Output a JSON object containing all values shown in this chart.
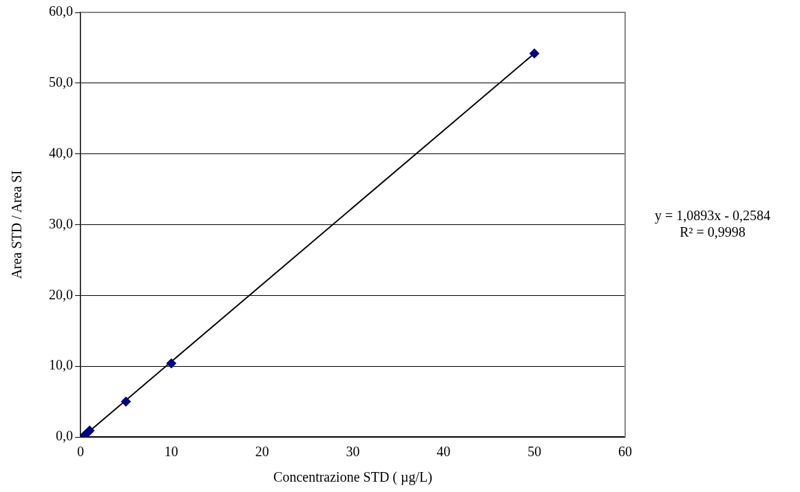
{
  "chart_data": {
    "type": "scatter",
    "xlabel": "Concentrazione STD ( µg/L)",
    "ylabel": "Area STD / Area SI",
    "xlim": [
      0,
      60
    ],
    "xticks": [
      0,
      10,
      20,
      30,
      40,
      50,
      60
    ],
    "ylim": [
      0,
      60
    ],
    "yticks": [
      {
        "value": 0,
        "label": "0,0"
      },
      {
        "value": 10,
        "label": "10,0"
      },
      {
        "value": 20,
        "label": "20,0"
      },
      {
        "value": 30,
        "label": "30,0"
      },
      {
        "value": 40,
        "label": "40,0"
      },
      {
        "value": 50,
        "label": "50,0"
      },
      {
        "value": 60,
        "label": "60,0"
      }
    ],
    "grid": "y",
    "legend": false,
    "series": [
      {
        "color": "#000080",
        "marker": "diamond",
        "x": [
          0.5,
          1,
          5,
          10,
          50
        ],
        "values": [
          0.3,
          0.9,
          5.0,
          10.4,
          54.2
        ]
      },
      {
        "type": "line",
        "color": "#000000",
        "marker": "none",
        "line_style": "solid",
        "x": [
          0.5,
          50
        ],
        "values": [
          0.3,
          54.2
        ]
      }
    ],
    "annotations": [
      "y = 1,0893x - 0,2584",
      "R² = 0,9998"
    ]
  }
}
